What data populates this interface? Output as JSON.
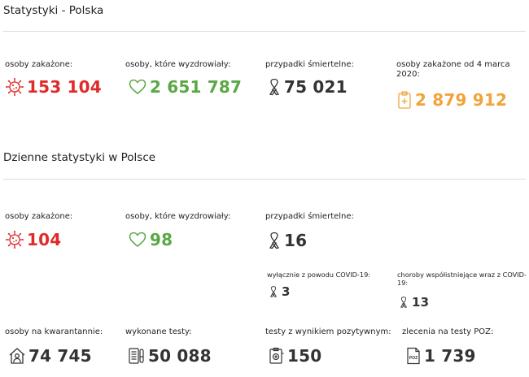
{
  "section1": {
    "title": "Statystyki - Polska",
    "stats": [
      {
        "label": "osoby zakażone:",
        "value": "153 104",
        "icon": "virus-icon",
        "color": "#e02a2a"
      },
      {
        "label": "osoby, które wyzdrowiały:",
        "value": "2 651 787",
        "icon": "heart-icon",
        "color": "#5aa845"
      },
      {
        "label": "przypadki śmiertelne:",
        "value": "75 021",
        "icon": "ribbon-icon",
        "color": "#333333"
      },
      {
        "label": "osoby zakażone od 4 marca 2020:",
        "value": "2 879 912",
        "icon": "clipboard-icon",
        "color": "#f0a43a"
      }
    ]
  },
  "section2": {
    "title": "Dzienne statystyki w Polsce",
    "stats": [
      {
        "label": "osoby zakażone:",
        "value": "104",
        "icon": "virus-icon",
        "color": "#e02a2a"
      },
      {
        "label": "osoby, które wyzdrowiały:",
        "value": "98",
        "icon": "heart-icon",
        "color": "#5aa845"
      },
      {
        "label": "przypadki śmiertelne:",
        "value": "16",
        "icon": "ribbon-icon",
        "color": "#333333"
      }
    ],
    "deaths_breakdown": [
      {
        "label": "wyłącznie z powodu COVID-19:",
        "value": "3",
        "icon": "ribbon-icon"
      },
      {
        "label": "choroby współistniejące wraz z COVID-19:",
        "value": "13",
        "icon": "ribbon-icon"
      }
    ],
    "bottom_stats": [
      {
        "label": "osoby na kwarantannie:",
        "value": "74 745",
        "icon": "house-person-icon"
      },
      {
        "label": "wykonane testy:",
        "value": "50 088",
        "icon": "test-list-icon"
      },
      {
        "label": "testy z wynikiem pozytywnym:",
        "value": "150",
        "icon": "positive-test-icon"
      },
      {
        "label": "zlecenia na testy POZ:",
        "value": "1 739",
        "icon": "poz-order-icon"
      }
    ],
    "poz_icon_text": "POZ"
  }
}
